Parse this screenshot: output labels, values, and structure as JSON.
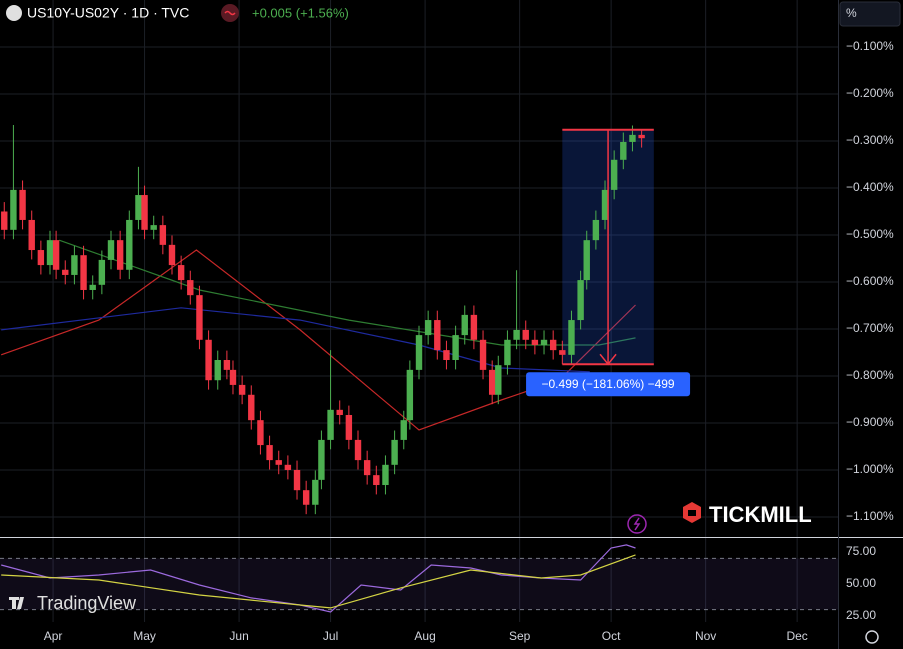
{
  "chart_data": [
    {
      "type": "candlestick",
      "title": "US10Y-US02Y · 1D · TVC",
      "subtitle": "+0.005 (+1.56%)",
      "axis_unit": "%",
      "watermark": "TICKMILL",
      "logo_text": "TradingView",
      "up_color": "#4caf50",
      "down_color": "#f23645",
      "grid": true,
      "x": [
        75,
        78,
        81,
        84,
        87,
        90,
        92,
        95,
        98,
        101,
        104,
        107,
        110,
        113,
        116,
        119,
        121,
        124,
        127,
        130,
        133,
        136,
        139,
        142,
        145,
        148,
        150,
        153,
        156,
        159,
        162,
        165,
        168,
        171,
        174,
        177,
        179,
        182,
        185,
        188,
        191,
        194,
        197,
        200,
        203,
        206,
        208,
        211,
        214,
        217,
        220,
        223,
        226,
        229,
        232,
        235,
        237,
        240,
        243,
        246,
        249,
        252,
        255,
        258,
        261,
        264,
        266,
        269,
        272,
        275,
        278,
        281,
        284
      ],
      "open": [
        -0.45,
        -0.489,
        -0.404,
        -0.468,
        -0.532,
        -0.564,
        -0.511,
        -0.574,
        -0.585,
        -0.543,
        -0.617,
        -0.606,
        -0.553,
        -0.511,
        -0.574,
        -0.468,
        -0.415,
        -0.489,
        -0.479,
        -0.521,
        -0.564,
        -0.596,
        -0.628,
        -0.723,
        -0.809,
        -0.766,
        -0.787,
        -0.819,
        -0.84,
        -0.894,
        -0.947,
        -0.979,
        -0.989,
        -1.0,
        -1.043,
        -1.074,
        -1.021,
        -0.936,
        -0.872,
        -0.883,
        -0.936,
        -0.979,
        -1.011,
        -1.032,
        -0.989,
        -0.936,
        -0.894,
        -0.787,
        -0.713,
        -0.681,
        -0.745,
        -0.766,
        -0.713,
        -0.67,
        -0.723,
        -0.787,
        -0.84,
        -0.777,
        -0.723,
        -0.702,
        -0.723,
        -0.734,
        -0.723,
        -0.745,
        -0.755,
        -0.681,
        -0.596,
        -0.511,
        -0.468,
        -0.404,
        -0.34,
        -0.302,
        -0.287
      ],
      "high": [
        -0.43,
        -0.266,
        -0.384,
        -0.448,
        -0.512,
        -0.491,
        -0.491,
        -0.554,
        -0.523,
        -0.523,
        -0.586,
        -0.533,
        -0.491,
        -0.491,
        -0.448,
        -0.355,
        -0.395,
        -0.459,
        -0.459,
        -0.501,
        -0.544,
        -0.576,
        -0.608,
        -0.703,
        -0.746,
        -0.746,
        -0.767,
        -0.799,
        -0.82,
        -0.874,
        -0.927,
        -0.959,
        -0.969,
        -0.98,
        -1.023,
        -1.001,
        -0.916,
        -0.745,
        -0.852,
        -0.863,
        -0.916,
        -0.959,
        -0.991,
        -0.969,
        -0.916,
        -0.874,
        -0.767,
        -0.693,
        -0.661,
        -0.661,
        -0.725,
        -0.693,
        -0.65,
        -0.65,
        -0.703,
        -0.767,
        -0.757,
        -0.703,
        -0.575,
        -0.682,
        -0.703,
        -0.703,
        -0.703,
        -0.725,
        -0.661,
        -0.576,
        -0.491,
        -0.448,
        -0.384,
        -0.32,
        -0.282,
        -0.267,
        -0.277
      ],
      "low": [
        -0.509,
        -0.509,
        -0.488,
        -0.552,
        -0.584,
        -0.584,
        -0.594,
        -0.605,
        -0.605,
        -0.637,
        -0.637,
        -0.626,
        -0.573,
        -0.594,
        -0.594,
        -0.488,
        -0.509,
        -0.509,
        -0.541,
        -0.584,
        -0.616,
        -0.648,
        -0.743,
        -0.829,
        -0.829,
        -0.807,
        -0.839,
        -0.86,
        -0.914,
        -0.967,
        -0.999,
        -1.009,
        -1.02,
        -1.063,
        -1.094,
        -1.094,
        -1.041,
        -0.956,
        -0.903,
        -0.956,
        -0.999,
        -1.031,
        -1.052,
        -1.052,
        -1.009,
        -0.956,
        -0.914,
        -0.807,
        -0.733,
        -0.765,
        -0.786,
        -0.786,
        -0.733,
        -0.743,
        -0.807,
        -0.86,
        -0.86,
        -0.797,
        -0.743,
        -0.743,
        -0.754,
        -0.754,
        -0.765,
        -0.775,
        -0.775,
        -0.701,
        -0.616,
        -0.531,
        -0.488,
        -0.424,
        -0.36,
        -0.322,
        -0.314
      ],
      "close": [
        -0.489,
        -0.404,
        -0.468,
        -0.532,
        -0.564,
        -0.511,
        -0.574,
        -0.585,
        -0.543,
        -0.617,
        -0.606,
        -0.553,
        -0.511,
        -0.574,
        -0.468,
        -0.415,
        -0.489,
        -0.479,
        -0.521,
        -0.564,
        -0.596,
        -0.628,
        -0.723,
        -0.809,
        -0.766,
        -0.787,
        -0.819,
        -0.84,
        -0.894,
        -0.947,
        -0.979,
        -0.989,
        -1.0,
        -1.043,
        -1.074,
        -1.021,
        -0.936,
        -0.872,
        -0.883,
        -0.936,
        -0.979,
        -1.011,
        -1.032,
        -0.989,
        -0.936,
        -0.894,
        -0.787,
        -0.713,
        -0.681,
        -0.745,
        -0.766,
        -0.713,
        -0.67,
        -0.723,
        -0.787,
        -0.84,
        -0.777,
        -0.723,
        -0.702,
        -0.723,
        -0.734,
        -0.723,
        -0.745,
        -0.755,
        -0.681,
        -0.596,
        -0.511,
        -0.468,
        -0.404,
        -0.34,
        -0.302,
        -0.287,
        -0.294
      ],
      "moving_averages": [
        {
          "color": "#c62828",
          "x": [
            74,
            106,
            138,
            172,
            211,
            238,
            257,
            282
          ],
          "values": [
            -0.755,
            -0.681,
            -0.532,
            -0.702,
            -0.915,
            -0.851,
            -0.809,
            -0.649
          ]
        },
        {
          "color": "#2e7d32",
          "x": [
            93,
            139,
            188,
            238,
            270,
            282
          ],
          "values": [
            -0.511,
            -0.617,
            -0.681,
            -0.734,
            -0.734,
            -0.719
          ]
        },
        {
          "color": "#1e2a9e",
          "x": [
            74,
            133,
            172,
            211,
            238,
            267
          ],
          "values": [
            -0.702,
            -0.655,
            -0.681,
            -0.734,
            -0.783,
            -0.791
          ]
        }
      ],
      "measure": {
        "x": [
          258,
          288
        ],
        "values": [
          -0.276,
          -0.775
        ],
        "label": "−0.499 (−181.06%) −499"
      },
      "xlim": [
        73.6,
        348.4
      ],
      "xticks": [
        {
          "value": 91,
          "label": "Apr"
        },
        {
          "value": 121,
          "label": "May"
        },
        {
          "value": 152,
          "label": "Jun"
        },
        {
          "value": 182,
          "label": "Jul"
        },
        {
          "value": 213,
          "label": "Aug"
        },
        {
          "value": 244,
          "label": "Sep"
        },
        {
          "value": 274,
          "label": "Oct"
        },
        {
          "value": 305,
          "label": "Nov"
        },
        {
          "value": 335,
          "label": "Dec"
        }
      ],
      "ylim": [
        -1.1426,
        0
      ],
      "yticks": [
        {
          "value": -0.1,
          "label": "−0.100%"
        },
        {
          "value": -0.2,
          "label": "−0.200%"
        },
        {
          "value": -0.3,
          "label": "−0.300%"
        },
        {
          "value": -0.4,
          "label": "−0.400%"
        },
        {
          "value": -0.5,
          "label": "−0.500%"
        },
        {
          "value": -0.6,
          "label": "−0.600%"
        },
        {
          "value": -0.7,
          "label": "−0.700%"
        },
        {
          "value": -0.8,
          "label": "−0.800%"
        },
        {
          "value": -0.9,
          "label": "−0.900%"
        },
        {
          "value": -1.0,
          "label": "−1.000%"
        },
        {
          "value": -1.1,
          "label": "−1.100%"
        }
      ]
    },
    {
      "type": "line",
      "band_color": "#7e57c2",
      "bands": [
        30,
        70
      ],
      "series": [
        {
          "color": "#9c6ade",
          "x": [
            74,
            90,
            106,
            123,
            139,
            156,
            172,
            182,
            192,
            205,
            215,
            228,
            238,
            251,
            264,
            274,
            279,
            282
          ],
          "values": [
            64.8,
            54.7,
            57.0,
            60.9,
            49.2,
            39.1,
            33.6,
            28.1,
            49.2,
            45.3,
            64.8,
            62.5,
            57.0,
            54.7,
            53.1,
            78.1,
            80.5,
            78.1
          ]
        },
        {
          "color": "#d4d444",
          "x": [
            74,
            106,
            139,
            172,
            182,
            205,
            228,
            251,
            264,
            282
          ],
          "values": [
            57.0,
            53.1,
            41.4,
            33.6,
            31.3,
            46.9,
            60.9,
            54.7,
            57.0,
            72.7
          ]
        }
      ],
      "xlim": [
        73.6,
        348.4
      ],
      "ylim": [
        20.3,
        86.7
      ],
      "yticks": [
        {
          "value": 25,
          "label": "25.00"
        },
        {
          "value": 50,
          "label": "50.00"
        },
        {
          "value": 75,
          "label": "75.00"
        }
      ]
    }
  ]
}
